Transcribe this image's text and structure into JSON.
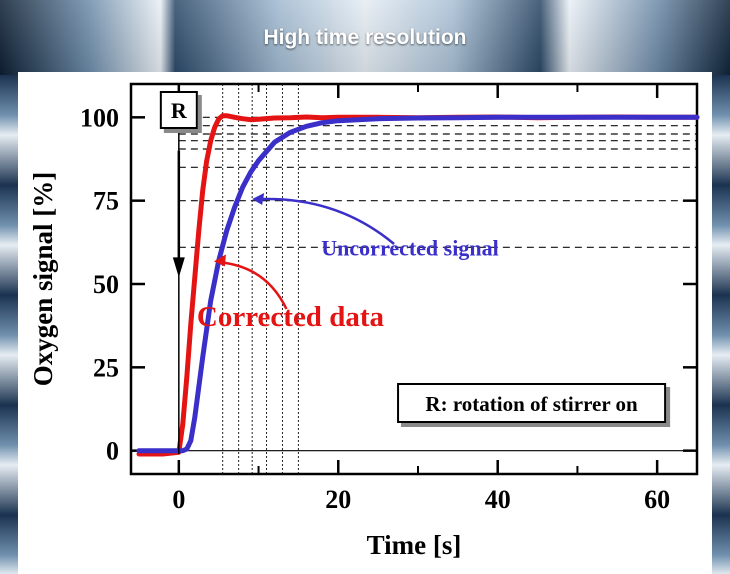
{
  "header": {
    "title": "High time resolution"
  },
  "chart_data": {
    "type": "line",
    "title": "",
    "xlabel": "Time [s]",
    "ylabel": "Oxygen signal [%]",
    "xlim": [
      -6,
      65
    ],
    "ylim": [
      -7,
      110
    ],
    "x_ticks": [
      0,
      20,
      40,
      60
    ],
    "y_ticks": [
      0,
      25,
      50,
      75,
      100
    ],
    "series": [
      {
        "name": "Corrected data",
        "color": "#e41414",
        "x": [
          -5,
          -2,
          0,
          0.5,
          1,
          1.5,
          2,
          2.5,
          3,
          3.5,
          4,
          4.5,
          5,
          5.5,
          6,
          7,
          8,
          9,
          10,
          12,
          14,
          16,
          18,
          20,
          25,
          30,
          35,
          40,
          45,
          50,
          55,
          60,
          65
        ],
        "y": [
          -1,
          -1,
          -0.5,
          8,
          22,
          38,
          52,
          66,
          78,
          87,
          93,
          97,
          99.5,
          100.5,
          100.5,
          100,
          99.6,
          99.3,
          99.4,
          99.8,
          99.9,
          100.1,
          99.9,
          100,
          100,
          99.9,
          100,
          100.1,
          99.9,
          100,
          100.1,
          100,
          100
        ]
      },
      {
        "name": "Uncorrected signal",
        "color": "#3a2fc8",
        "x": [
          -5,
          -2,
          0,
          0.5,
          1,
          1.5,
          2,
          3,
          4,
          5,
          6,
          7,
          8,
          9,
          10,
          12,
          14,
          16,
          18,
          20,
          25,
          30,
          35,
          40,
          45,
          50,
          55,
          60,
          65
        ],
        "y": [
          0,
          0,
          0,
          0,
          0.5,
          3,
          10,
          28,
          45,
          57,
          66,
          73,
          79,
          83.5,
          87,
          92.5,
          95.5,
          97.3,
          98.4,
          99,
          99.6,
          99.8,
          99.9,
          100,
          100,
          100,
          100,
          100,
          100
        ]
      }
    ],
    "reference_hlines": [
      100,
      97.5,
      95,
      93,
      90.5,
      85,
      75,
      61
    ],
    "reference_vlines": [
      5.5,
      7.5,
      9.2,
      11,
      13,
      15
    ],
    "annotations": {
      "r_marker": "R",
      "uncorrected_label": "Uncorrected signal",
      "corrected_label": "Corrected data",
      "legend_box": "R: rotation of stirrer on"
    },
    "grid": false,
    "legend": "none"
  }
}
